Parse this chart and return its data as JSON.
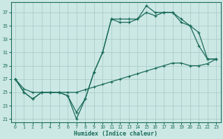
{
  "background_color": "#cce8e4",
  "grid_color": "#aacccc",
  "line_color": "#1a6b5a",
  "xlabel": "Humidex (Indice chaleur)",
  "xlim": [
    -0.5,
    23.5
  ],
  "ylim": [
    20.5,
    38.5
  ],
  "yticks": [
    21,
    23,
    25,
    27,
    29,
    31,
    33,
    35,
    37
  ],
  "xticks": [
    0,
    1,
    2,
    3,
    4,
    5,
    6,
    7,
    8,
    9,
    10,
    11,
    12,
    13,
    14,
    15,
    16,
    17,
    18,
    19,
    20,
    21,
    22,
    23
  ],
  "line1_x": [
    0,
    1,
    2,
    3,
    4,
    5,
    6,
    7,
    8,
    9,
    10,
    11,
    12,
    13,
    14,
    15,
    16,
    17,
    18,
    19,
    20,
    21,
    22,
    23
  ],
  "line1_y": [
    27,
    25,
    24,
    25,
    25,
    25,
    24.5,
    21,
    24,
    28,
    31,
    36,
    36,
    36,
    36,
    38,
    37,
    37,
    37,
    36,
    35,
    34,
    30,
    30
  ],
  "line2_x": [
    0,
    1,
    2,
    3,
    4,
    5,
    6,
    7,
    8,
    9,
    10,
    11,
    12,
    13,
    14,
    15,
    16,
    17,
    18,
    19,
    20,
    21,
    22,
    23
  ],
  "line2_y": [
    27,
    25,
    24,
    25,
    25,
    25,
    24.5,
    22,
    24,
    28,
    31,
    36,
    35.5,
    35.5,
    36,
    37,
    36.5,
    37,
    37,
    35.5,
    35,
    32,
    30,
    30
  ],
  "line3_x": [
    0,
    1,
    2,
    3,
    4,
    5,
    6,
    7,
    8,
    9,
    10,
    11,
    12,
    13,
    14,
    15,
    16,
    17,
    18,
    19,
    20,
    21,
    22,
    23
  ],
  "line3_y": [
    27,
    25.5,
    25.0,
    25.0,
    25.0,
    25.0,
    25.0,
    25.0,
    25.4,
    25.8,
    26.2,
    26.6,
    27.0,
    27.4,
    27.8,
    28.2,
    28.6,
    29.0,
    29.4,
    29.4,
    29.0,
    29.0,
    29.3,
    30.0
  ]
}
